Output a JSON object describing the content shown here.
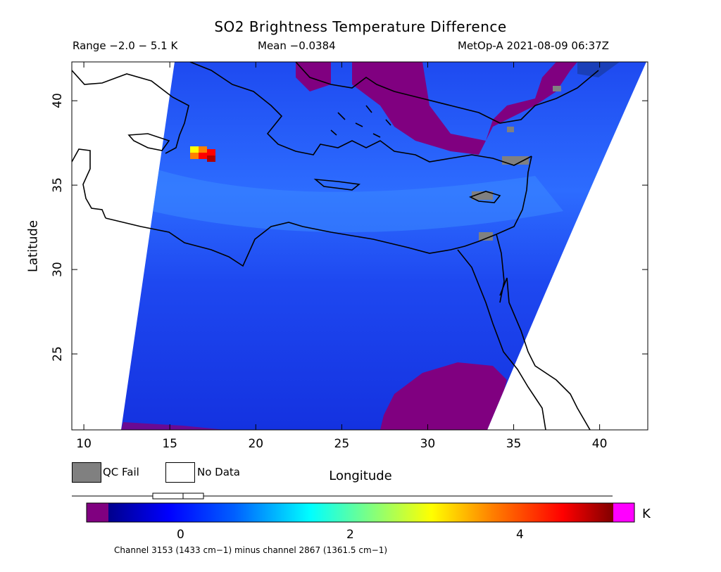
{
  "header": {
    "title": "SO2 Brightness Temperature Difference",
    "range": "Range −2.0 − 5.1 K",
    "mean": "Mean −0.0384",
    "satellite_time": "MetOp-A 2021-08-09 06:37Z"
  },
  "axes": {
    "xlabel": "Longitude",
    "ylabel": "Latitude",
    "xlim": [
      9.3,
      42.8
    ],
    "ylim": [
      20.5,
      42.3
    ],
    "xticks": [
      "10",
      "15",
      "20",
      "25",
      "30",
      "35",
      "40"
    ],
    "yticks": [
      "25",
      "30",
      "35",
      "40"
    ]
  },
  "legend": {
    "qc_fail_label": "QC Fail",
    "qc_fail_color": "#808080",
    "no_data_label": "No Data",
    "no_data_color": "#ffffff"
  },
  "colorbar": {
    "ticks": [
      "0",
      "2",
      "4"
    ],
    "units": "K",
    "min": -0.85,
    "max": 5.1,
    "underflow_color": "#800080",
    "overflow_color": "#ff00ff",
    "colors": [
      "#00008c",
      "#0000ff",
      "#0080ff",
      "#00ffff",
      "#80ff80",
      "#ffff00",
      "#ff8000",
      "#ff0000",
      "#800000"
    ]
  },
  "footer": {
    "channel_note": "Channel 3153 (1433 cm−1) minus channel 2867 (1361.5 cm−1)"
  },
  "palette": {
    "background_field": "#1e3cf0",
    "low_region": "#800080",
    "coastline": "#000000"
  }
}
